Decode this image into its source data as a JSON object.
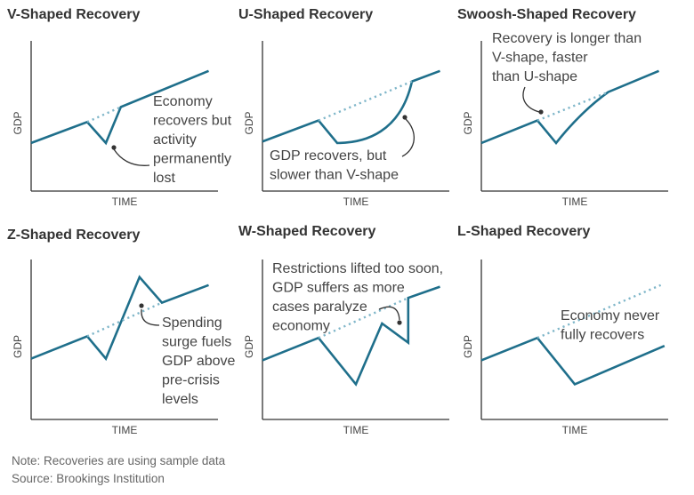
{
  "colors": {
    "line": "#1f6f8b",
    "dotted": "#7fb6c9",
    "axis": "#333333",
    "arrow": "#333333"
  },
  "note": "Note: Recoveries are using sample data",
  "source": "Source: Brookings Institution",
  "chart_data": [
    {
      "type": "line",
      "title": "V-Shaped Recovery",
      "xlabel": "TIME",
      "ylabel": "GDP",
      "xlim": [
        0,
        100
      ],
      "ylim": [
        0,
        100
      ],
      "series": [
        {
          "name": "GDP",
          "style": "solid",
          "x": [
            0,
            30,
            40,
            48,
            95
          ],
          "y": [
            32,
            46,
            32,
            56,
            80
          ]
        },
        {
          "name": "Pre-crisis trend",
          "style": "dotted",
          "x": [
            30,
            48
          ],
          "y": [
            46,
            56
          ]
        }
      ],
      "annotation": [
        "Economy",
        "recovers but",
        "activity",
        "permanently",
        "lost"
      ]
    },
    {
      "type": "line",
      "title": "U-Shaped Recovery",
      "xlabel": "TIME",
      "ylabel": "GDP",
      "xlim": [
        0,
        100
      ],
      "ylim": [
        0,
        100
      ],
      "series": [
        {
          "name": "GDP",
          "style": "solid",
          "x": [
            0,
            30,
            40,
            55,
            70,
            80,
            95
          ],
          "y": [
            33,
            47,
            32,
            32,
            45,
            73,
            80
          ]
        },
        {
          "name": "Pre-crisis trend",
          "style": "dotted",
          "x": [
            30,
            80
          ],
          "y": [
            47,
            73
          ]
        }
      ],
      "annotation": [
        "GDP recovers, but",
        "slower than V-shape"
      ]
    },
    {
      "type": "line",
      "title": "Swoosh-Shaped Recovery",
      "xlabel": "TIME",
      "ylabel": "GDP",
      "xlim": [
        0,
        100
      ],
      "ylim": [
        0,
        100
      ],
      "series": [
        {
          "name": "GDP",
          "style": "solid",
          "x": [
            0,
            30,
            40,
            55,
            68,
            95
          ],
          "y": [
            32,
            47,
            32,
            55,
            66,
            80
          ]
        },
        {
          "name": "Pre-crisis trend",
          "style": "dotted",
          "x": [
            30,
            68
          ],
          "y": [
            47,
            66
          ]
        }
      ],
      "annotation": [
        "Recovery is longer than",
        "V-shape, faster",
        "than U-shape"
      ]
    },
    {
      "type": "line",
      "title": "Z-Shaped Recovery",
      "xlabel": "TIME",
      "ylabel": "GDP",
      "xlim": [
        0,
        100
      ],
      "ylim": [
        0,
        100
      ],
      "series": [
        {
          "name": "GDP",
          "style": "solid",
          "x": [
            0,
            30,
            40,
            58,
            70,
            95
          ],
          "y": [
            38,
            52,
            38,
            89,
            73,
            84
          ]
        },
        {
          "name": "Pre-crisis trend",
          "style": "dotted",
          "x": [
            30,
            70
          ],
          "y": [
            52,
            73
          ]
        }
      ],
      "annotation": [
        "Spending",
        "surge fuels",
        "GDP above",
        "pre-crisis",
        "levels"
      ]
    },
    {
      "type": "line",
      "title": "W-Shaped Recovery",
      "xlabel": "TIME",
      "ylabel": "GDP",
      "xlim": [
        0,
        100
      ],
      "ylim": [
        0,
        100
      ],
      "series": [
        {
          "name": "GDP",
          "style": "solid",
          "x": [
            0,
            30,
            50,
            64,
            78,
            78,
            95
          ],
          "y": [
            37,
            51,
            22,
            60,
            48,
            76,
            83
          ]
        },
        {
          "name": "Pre-crisis trend",
          "style": "dotted",
          "x": [
            30,
            78
          ],
          "y": [
            51,
            76
          ]
        }
      ],
      "annotation": [
        "Restrictions lifted too soon,",
        "GDP suffers as more",
        "cases paralyze",
        "economy"
      ]
    },
    {
      "type": "line",
      "title": "L-Shaped Recovery",
      "xlabel": "TIME",
      "ylabel": "GDP",
      "xlim": [
        0,
        100
      ],
      "ylim": [
        0,
        100
      ],
      "series": [
        {
          "name": "GDP",
          "style": "solid",
          "x": [
            0,
            30,
            50,
            98
          ],
          "y": [
            37,
            51,
            22,
            46
          ]
        },
        {
          "name": "Pre-crisis trend",
          "style": "dotted",
          "x": [
            30,
            96
          ],
          "y": [
            51,
            84
          ]
        }
      ],
      "annotation": [
        "Economy never",
        "fully recovers"
      ]
    }
  ]
}
